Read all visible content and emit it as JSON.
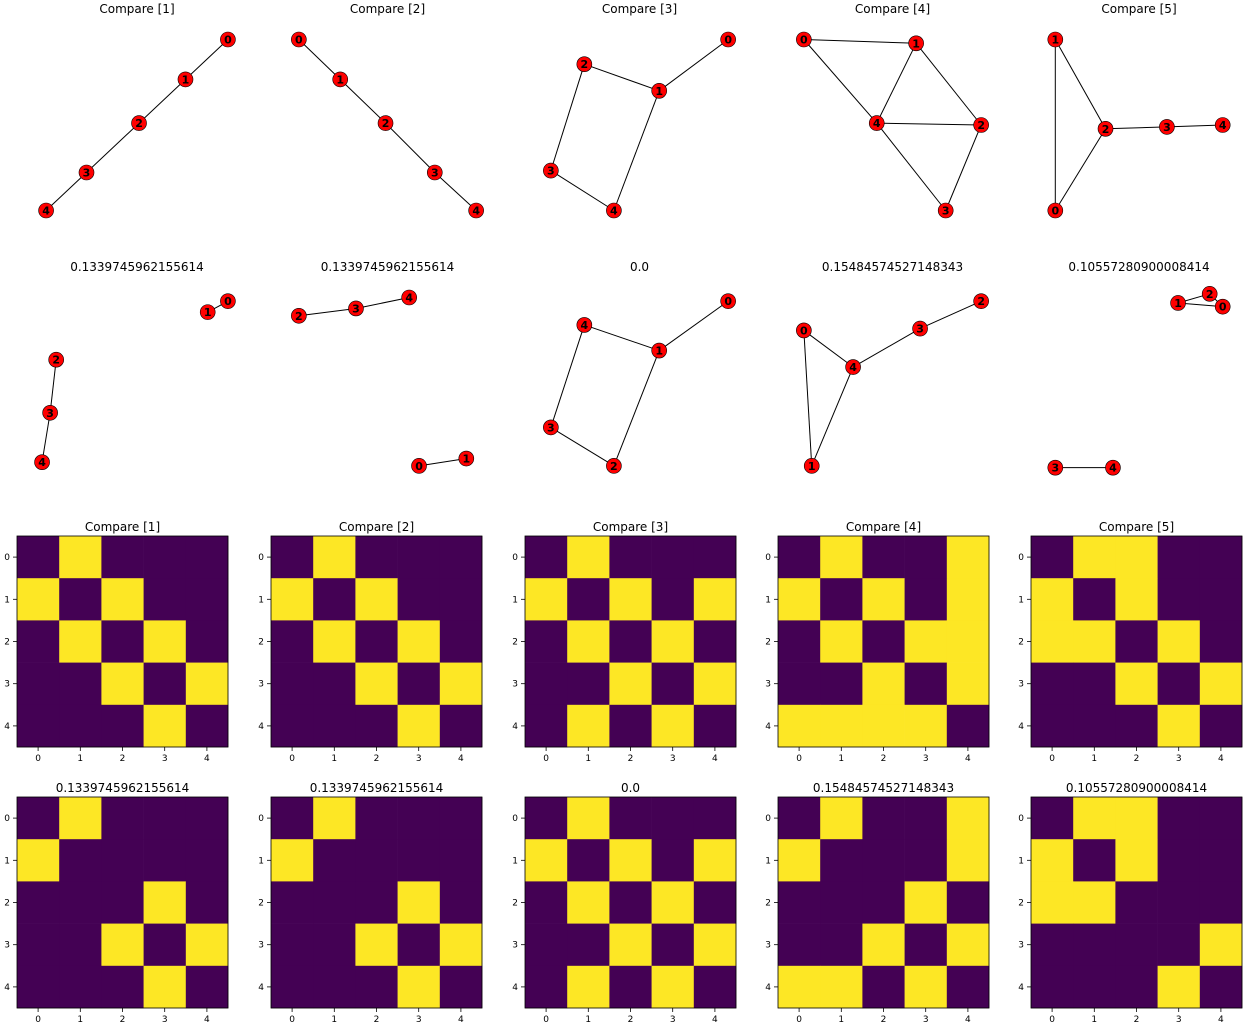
{
  "chart_data": [
    {
      "type": "graph",
      "title": "Compare [1]",
      "nodes": [
        {
          "label": "0",
          "x": 0.95,
          "y": 0.95
        },
        {
          "label": "1",
          "x": 0.74,
          "y": 0.74
        },
        {
          "label": "2",
          "x": 0.51,
          "y": 0.51
        },
        {
          "label": "3",
          "x": 0.25,
          "y": 0.25
        },
        {
          "label": "4",
          "x": 0.05,
          "y": 0.05
        }
      ],
      "edges": [
        [
          0,
          1
        ],
        [
          1,
          2
        ],
        [
          2,
          3
        ],
        [
          3,
          4
        ]
      ]
    },
    {
      "type": "graph",
      "title": "Compare [2]",
      "nodes": [
        {
          "label": "0",
          "x": 0.05,
          "y": 0.95
        },
        {
          "label": "1",
          "x": 0.26,
          "y": 0.74
        },
        {
          "label": "2",
          "x": 0.49,
          "y": 0.51
        },
        {
          "label": "3",
          "x": 0.74,
          "y": 0.25
        },
        {
          "label": "4",
          "x": 0.95,
          "y": 0.05
        }
      ],
      "edges": [
        [
          0,
          1
        ],
        [
          1,
          2
        ],
        [
          2,
          3
        ],
        [
          3,
          4
        ]
      ]
    },
    {
      "type": "graph",
      "title": "Compare [3]",
      "nodes": [
        {
          "label": "0",
          "x": 0.95,
          "y": 0.95
        },
        {
          "label": "1",
          "x": 0.6,
          "y": 0.68
        },
        {
          "label": "2",
          "x": 0.22,
          "y": 0.82
        },
        {
          "label": "3",
          "x": 0.05,
          "y": 0.26
        },
        {
          "label": "4",
          "x": 0.37,
          "y": 0.05
        }
      ],
      "edges": [
        [
          0,
          1
        ],
        [
          1,
          2
        ],
        [
          2,
          3
        ],
        [
          3,
          4
        ],
        [
          1,
          4
        ]
      ]
    },
    {
      "type": "graph",
      "title": "Compare [4]",
      "nodes": [
        {
          "label": "0",
          "x": 0.05,
          "y": 0.95
        },
        {
          "label": "1",
          "x": 0.62,
          "y": 0.93
        },
        {
          "label": "2",
          "x": 0.95,
          "y": 0.5
        },
        {
          "label": "3",
          "x": 0.77,
          "y": 0.05
        },
        {
          "label": "4",
          "x": 0.42,
          "y": 0.51
        }
      ],
      "edges": [
        [
          0,
          1
        ],
        [
          0,
          4
        ],
        [
          1,
          4
        ],
        [
          1,
          2
        ],
        [
          2,
          4
        ],
        [
          4,
          3
        ],
        [
          2,
          3
        ]
      ]
    },
    {
      "type": "graph",
      "title": "Compare [5]",
      "nodes": [
        {
          "label": "0",
          "x": 0.05,
          "y": 0.05
        },
        {
          "label": "1",
          "x": 0.05,
          "y": 0.95
        },
        {
          "label": "2",
          "x": 0.32,
          "y": 0.48
        },
        {
          "label": "3",
          "x": 0.65,
          "y": 0.49
        },
        {
          "label": "4",
          "x": 0.95,
          "y": 0.5
        }
      ],
      "edges": [
        [
          0,
          1
        ],
        [
          1,
          2
        ],
        [
          0,
          2
        ],
        [
          2,
          3
        ],
        [
          3,
          4
        ]
      ]
    },
    {
      "type": "graph",
      "title": "0.1339745962155614",
      "nodes": [
        {
          "label": "0",
          "x": 0.95,
          "y": 0.95
        },
        {
          "label": "1",
          "x": 0.85,
          "y": 0.89
        },
        {
          "label": "2",
          "x": 0.1,
          "y": 0.63
        },
        {
          "label": "3",
          "x": 0.07,
          "y": 0.34
        },
        {
          "label": "4",
          "x": 0.03,
          "y": 0.07
        }
      ],
      "edges": [
        [
          0,
          1
        ],
        [
          2,
          3
        ],
        [
          3,
          4
        ]
      ]
    },
    {
      "type": "graph",
      "title": "0.1339745962155614",
      "nodes": [
        {
          "label": "0",
          "x": 0.66,
          "y": 0.05
        },
        {
          "label": "1",
          "x": 0.9,
          "y": 0.09
        },
        {
          "label": "2",
          "x": 0.05,
          "y": 0.87
        },
        {
          "label": "3",
          "x": 0.34,
          "y": 0.91
        },
        {
          "label": "4",
          "x": 0.61,
          "y": 0.97
        }
      ],
      "edges": [
        [
          0,
          1
        ],
        [
          2,
          3
        ],
        [
          3,
          4
        ]
      ]
    },
    {
      "type": "graph",
      "title": "0.0",
      "nodes": [
        {
          "label": "0",
          "x": 0.95,
          "y": 0.95
        },
        {
          "label": "1",
          "x": 0.6,
          "y": 0.68
        },
        {
          "label": "2",
          "x": 0.37,
          "y": 0.05
        },
        {
          "label": "3",
          "x": 0.05,
          "y": 0.26
        },
        {
          "label": "4",
          "x": 0.22,
          "y": 0.82
        }
      ],
      "edges": [
        [
          0,
          1
        ],
        [
          1,
          2
        ],
        [
          2,
          3
        ],
        [
          3,
          4
        ],
        [
          1,
          4
        ]
      ]
    },
    {
      "type": "graph",
      "title": "0.15484574527148343",
      "nodes": [
        {
          "label": "0",
          "x": 0.05,
          "y": 0.79
        },
        {
          "label": "1",
          "x": 0.09,
          "y": 0.05
        },
        {
          "label": "2",
          "x": 0.95,
          "y": 0.95
        },
        {
          "label": "3",
          "x": 0.64,
          "y": 0.8
        },
        {
          "label": "4",
          "x": 0.3,
          "y": 0.59
        }
      ],
      "edges": [
        [
          0,
          1
        ],
        [
          0,
          4
        ],
        [
          1,
          4
        ],
        [
          4,
          3
        ],
        [
          3,
          2
        ]
      ]
    },
    {
      "type": "graph",
      "title": "0.10557280900008414",
      "nodes": [
        {
          "label": "0",
          "x": 0.95,
          "y": 0.92
        },
        {
          "label": "1",
          "x": 0.71,
          "y": 0.94
        },
        {
          "label": "2",
          "x": 0.88,
          "y": 0.99
        },
        {
          "label": "3",
          "x": 0.05,
          "y": 0.04
        },
        {
          "label": "4",
          "x": 0.36,
          "y": 0.04
        }
      ],
      "edges": [
        [
          0,
          1
        ],
        [
          1,
          2
        ],
        [
          0,
          2
        ],
        [
          3,
          4
        ]
      ]
    },
    {
      "type": "heatmap",
      "title": "Compare [1]",
      "xticks": [
        "0",
        "1",
        "2",
        "3",
        "4"
      ],
      "yticks": [
        "0",
        "1",
        "2",
        "3",
        "4"
      ],
      "matrix": [
        [
          0,
          1,
          0,
          0,
          0
        ],
        [
          1,
          0,
          1,
          0,
          0
        ],
        [
          0,
          1,
          0,
          1,
          0
        ],
        [
          0,
          0,
          1,
          0,
          1
        ],
        [
          0,
          0,
          0,
          1,
          0
        ]
      ]
    },
    {
      "type": "heatmap",
      "title": "Compare [2]",
      "xticks": [
        "0",
        "1",
        "2",
        "3",
        "4"
      ],
      "yticks": [
        "0",
        "1",
        "2",
        "3",
        "4"
      ],
      "matrix": [
        [
          0,
          1,
          0,
          0,
          0
        ],
        [
          1,
          0,
          1,
          0,
          0
        ],
        [
          0,
          1,
          0,
          1,
          0
        ],
        [
          0,
          0,
          1,
          0,
          1
        ],
        [
          0,
          0,
          0,
          1,
          0
        ]
      ]
    },
    {
      "type": "heatmap",
      "title": "Compare [3]",
      "xticks": [
        "0",
        "1",
        "2",
        "3",
        "4"
      ],
      "yticks": [
        "0",
        "1",
        "2",
        "3",
        "4"
      ],
      "matrix": [
        [
          0,
          1,
          0,
          0,
          0
        ],
        [
          1,
          0,
          1,
          0,
          1
        ],
        [
          0,
          1,
          0,
          1,
          0
        ],
        [
          0,
          0,
          1,
          0,
          1
        ],
        [
          0,
          1,
          0,
          1,
          0
        ]
      ]
    },
    {
      "type": "heatmap",
      "title": "Compare [4]",
      "xticks": [
        "0",
        "1",
        "2",
        "3",
        "4"
      ],
      "yticks": [
        "0",
        "1",
        "2",
        "3",
        "4"
      ],
      "matrix": [
        [
          0,
          1,
          0,
          0,
          1
        ],
        [
          1,
          0,
          1,
          0,
          1
        ],
        [
          0,
          1,
          0,
          1,
          1
        ],
        [
          0,
          0,
          1,
          0,
          1
        ],
        [
          1,
          1,
          1,
          1,
          0
        ]
      ]
    },
    {
      "type": "heatmap",
      "title": "Compare [5]",
      "xticks": [
        "0",
        "1",
        "2",
        "3",
        "4"
      ],
      "yticks": [
        "0",
        "1",
        "2",
        "3",
        "4"
      ],
      "matrix": [
        [
          0,
          1,
          1,
          0,
          0
        ],
        [
          1,
          0,
          1,
          0,
          0
        ],
        [
          1,
          1,
          0,
          1,
          0
        ],
        [
          0,
          0,
          1,
          0,
          1
        ],
        [
          0,
          0,
          0,
          1,
          0
        ]
      ]
    },
    {
      "type": "heatmap",
      "title": "0.1339745962155614",
      "xticks": [
        "0",
        "1",
        "2",
        "3",
        "4"
      ],
      "yticks": [
        "0",
        "1",
        "2",
        "3",
        "4"
      ],
      "matrix": [
        [
          0,
          1,
          0,
          0,
          0
        ],
        [
          1,
          0,
          0,
          0,
          0
        ],
        [
          0,
          0,
          0,
          1,
          0
        ],
        [
          0,
          0,
          1,
          0,
          1
        ],
        [
          0,
          0,
          0,
          1,
          0
        ]
      ]
    },
    {
      "type": "heatmap",
      "title": "0.1339745962155614",
      "xticks": [
        "0",
        "1",
        "2",
        "3",
        "4"
      ],
      "yticks": [
        "0",
        "1",
        "2",
        "3",
        "4"
      ],
      "matrix": [
        [
          0,
          1,
          0,
          0,
          0
        ],
        [
          1,
          0,
          0,
          0,
          0
        ],
        [
          0,
          0,
          0,
          1,
          0
        ],
        [
          0,
          0,
          1,
          0,
          1
        ],
        [
          0,
          0,
          0,
          1,
          0
        ]
      ]
    },
    {
      "type": "heatmap",
      "title": "0.0",
      "xticks": [
        "0",
        "1",
        "2",
        "3",
        "4"
      ],
      "yticks": [
        "0",
        "1",
        "2",
        "3",
        "4"
      ],
      "matrix": [
        [
          0,
          1,
          0,
          0,
          0
        ],
        [
          1,
          0,
          1,
          0,
          1
        ],
        [
          0,
          1,
          0,
          1,
          0
        ],
        [
          0,
          0,
          1,
          0,
          1
        ],
        [
          0,
          1,
          0,
          1,
          0
        ]
      ]
    },
    {
      "type": "heatmap",
      "title": "0.15484574527148343",
      "xticks": [
        "0",
        "1",
        "2",
        "3",
        "4"
      ],
      "yticks": [
        "0",
        "1",
        "2",
        "3",
        "4"
      ],
      "matrix": [
        [
          0,
          1,
          0,
          0,
          1
        ],
        [
          1,
          0,
          0,
          0,
          1
        ],
        [
          0,
          0,
          0,
          1,
          0
        ],
        [
          0,
          0,
          1,
          0,
          1
        ],
        [
          1,
          1,
          0,
          1,
          0
        ]
      ]
    },
    {
      "type": "heatmap",
      "title": "0.10557280900008414",
      "xticks": [
        "0",
        "1",
        "2",
        "3",
        "4"
      ],
      "yticks": [
        "0",
        "1",
        "2",
        "3",
        "4"
      ],
      "matrix": [
        [
          0,
          1,
          1,
          0,
          0
        ],
        [
          1,
          0,
          1,
          0,
          0
        ],
        [
          1,
          1,
          0,
          0,
          0
        ],
        [
          0,
          0,
          0,
          0,
          1
        ],
        [
          0,
          0,
          0,
          1,
          0
        ]
      ]
    }
  ],
  "colors": {
    "node_fill": "#ff0000",
    "node_edge": "#000000",
    "edge": "#000000",
    "heat_low": "#440154",
    "heat_high": "#fde725",
    "text": "#000000"
  }
}
